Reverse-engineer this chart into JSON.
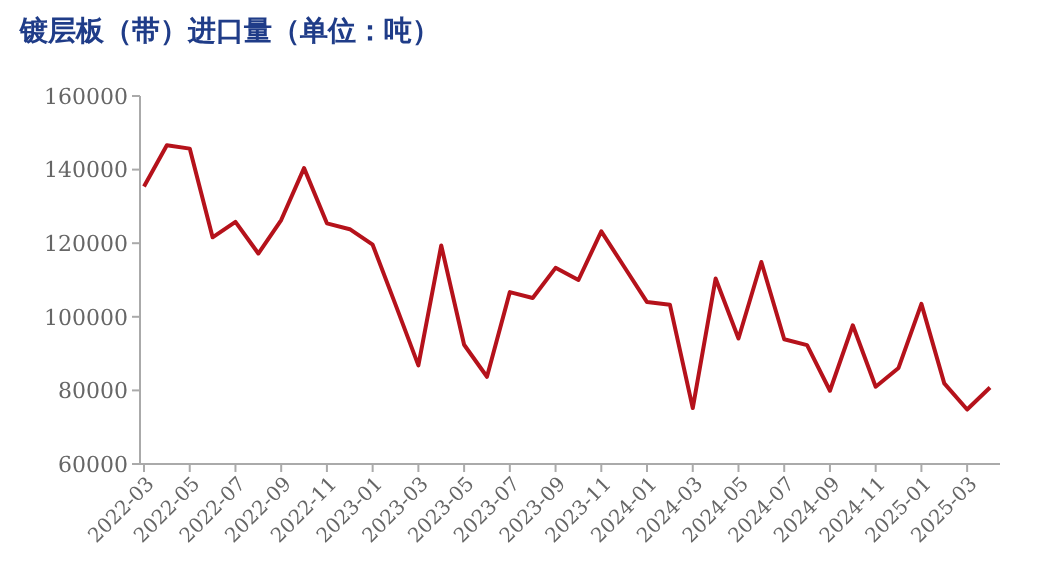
{
  "chart_data": {
    "type": "line",
    "title": "镀层板（带）进口量（单位：吨）",
    "categories": [
      "2022-03",
      null,
      "2022-05",
      null,
      "2022-07",
      null,
      "2022-09",
      null,
      "2022-11",
      null,
      "2023-01",
      null,
      "2023-03",
      null,
      "2023-05",
      null,
      "2023-07",
      null,
      "2023-09",
      null,
      "2023-11",
      null,
      "2024-01",
      null,
      "2024-03",
      null,
      "2024-05",
      null,
      "2024-07",
      null,
      "2024-09",
      null,
      "2024-11",
      null,
      "2025-01",
      null,
      "2025-03",
      null
    ],
    "series": [
      {
        "color": "#b5121b",
        "values": [
          135400,
          146600,
          145700,
          121600,
          125800,
          117200,
          126300,
          140400,
          125400,
          123800,
          119600,
          103300,
          86800,
          119400,
          92400,
          83700,
          106700,
          105100,
          113300,
          110000,
          123200,
          113600,
          104000,
          103300,
          75200,
          110400,
          94100,
          114900,
          93900,
          92300,
          79900,
          97700,
          81000,
          86100,
          103500,
          81900,
          74800,
          80800
        ]
      }
    ],
    "ylim": [
      60000,
      160000
    ],
    "yticks": [
      60000,
      80000,
      100000,
      120000,
      140000,
      160000
    ],
    "grid": false,
    "marker": "none",
    "line_style": "solid"
  }
}
